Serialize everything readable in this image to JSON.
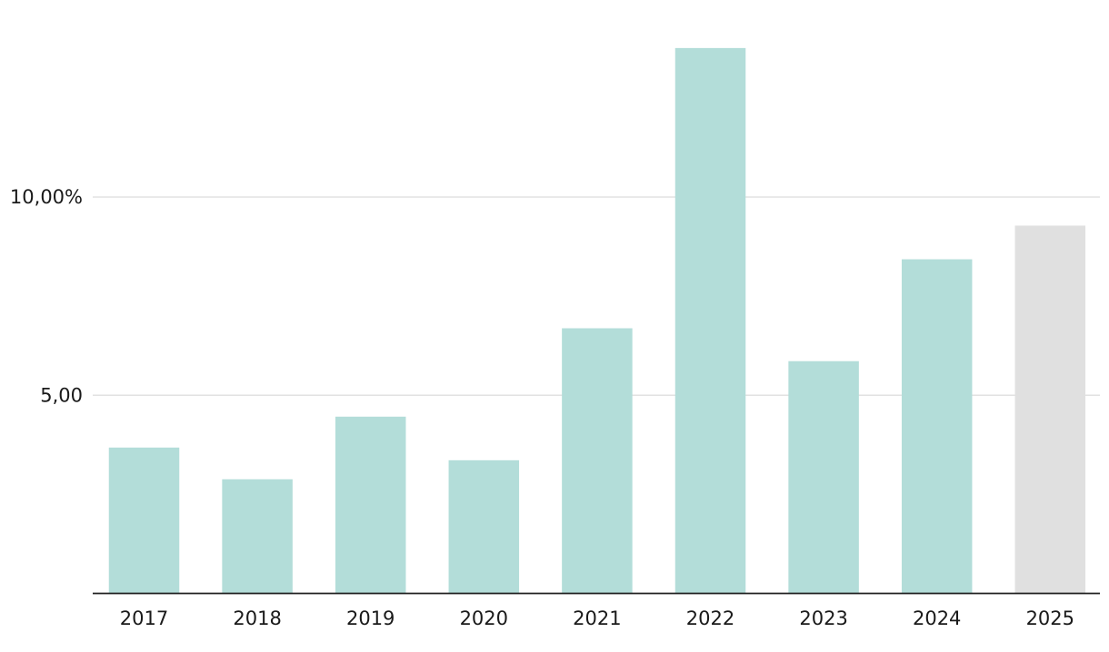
{
  "chart_data": {
    "type": "bar",
    "title": "",
    "xlabel": "",
    "ylabel": "",
    "categories": [
      "2017",
      "2018",
      "2019",
      "2020",
      "2021",
      "2022",
      "2023",
      "2024",
      "2025"
    ],
    "values": [
      3.68,
      2.88,
      4.46,
      3.36,
      6.69,
      13.76,
      5.86,
      8.43,
      9.28
    ],
    "ylim": [
      0,
      14.0
    ],
    "yticks": [
      5,
      10
    ],
    "ytick_labels": [
      "5,00",
      "10,00%"
    ],
    "grid": true,
    "legend": "none",
    "colors": {
      "bar": "#b3ddd9",
      "bar_highlight": "#e0e0e0",
      "highlight_categories": [
        "2025"
      ]
    }
  }
}
